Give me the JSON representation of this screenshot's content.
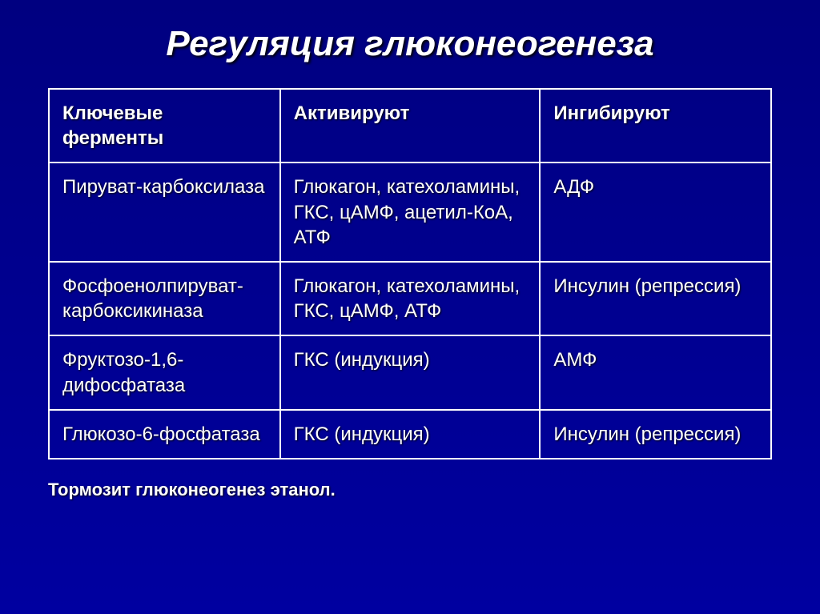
{
  "title": "Регуляция глюконеогенеза",
  "table": {
    "headers": {
      "enzyme": "Ключевые ферменты",
      "activate": "Активируют",
      "inhibit": "Ингибируют"
    },
    "rows": [
      {
        "enzyme": "Пируват-карбоксилаза",
        "activate": "Глюкагон, катехоламины, ГКС, цАМФ, ацетил-КоА, АТФ",
        "inhibit": "АДФ"
      },
      {
        "enzyme": "Фосфоенолпируват-карбоксикиназа",
        "activate": "Глюкагон, катехоламины, ГКС, цАМФ,  АТФ",
        "inhibit": "Инсулин (репрессия)"
      },
      {
        "enzyme": "Фруктозо-1,6-дифосфатаза",
        "activate": "ГКС (индукция)",
        "inhibit": "АМФ"
      },
      {
        "enzyme": "Глюкозо-6-фосфатаза",
        "activate": "ГКС  (индукция)",
        "inhibit": "Инсулин (репрессия)"
      }
    ]
  },
  "footnote": "Тормозит глюконеогенез этанол.",
  "style": {
    "background_gradient_top": "#000080",
    "background_gradient_bottom": "#0000a0",
    "text_color": "#ffffff",
    "border_color": "#ffffff",
    "title_fontsize": 44,
    "cell_fontsize": 24,
    "footnote_fontsize": 22,
    "title_font_style": "italic bold",
    "text_shadow_color": "#000000"
  }
}
